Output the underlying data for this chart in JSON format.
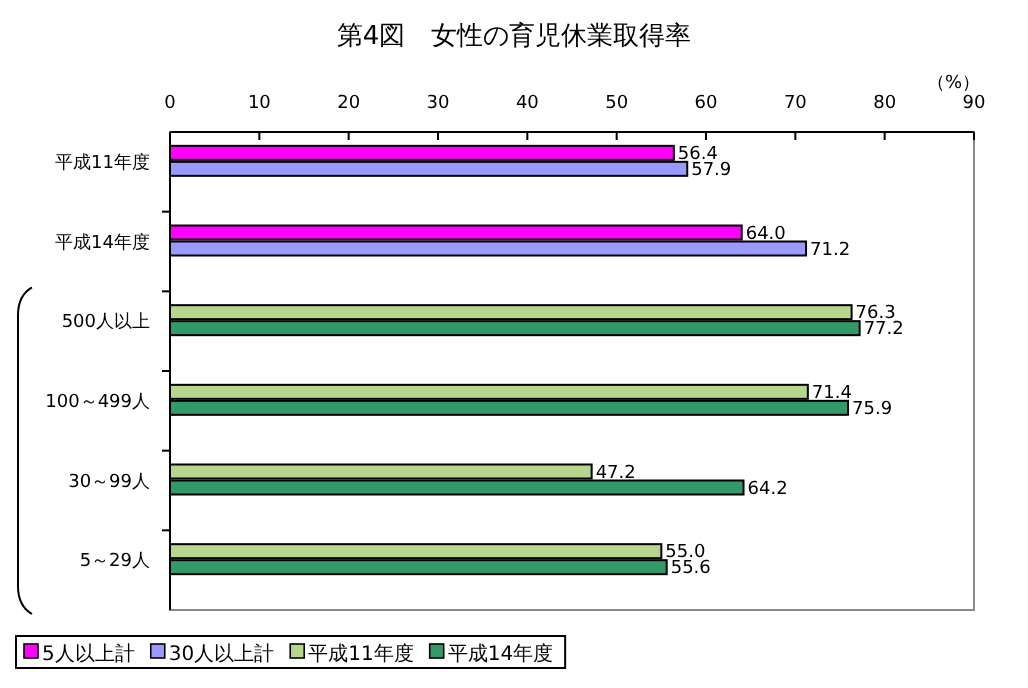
{
  "chart_data": {
    "type": "bar",
    "orientation": "horizontal",
    "title": "第4図　女性の育児休業取得率",
    "annotations": [
      "（%）"
    ],
    "categories": [
      "平成11年度",
      "平成14年度",
      "500人以上",
      "100～499人",
      "30～99人",
      "5～29人"
    ],
    "series": [
      {
        "name": "5人以上計",
        "color": "#ff00ff",
        "values": [
          56.4,
          64.0,
          null,
          null,
          null,
          null
        ],
        "value_labels": [
          "56.4",
          "64.0",
          null,
          null,
          null,
          null
        ]
      },
      {
        "name": "30人以上計",
        "color": "#9999ff",
        "values": [
          57.9,
          71.2,
          null,
          null,
          null,
          null
        ],
        "value_labels": [
          "57.9",
          "71.2",
          null,
          null,
          null,
          null
        ]
      },
      {
        "name": "平成11年度",
        "color": "#b5d68c",
        "values": [
          null,
          null,
          76.3,
          71.4,
          47.2,
          55.0
        ],
        "value_labels": [
          null,
          null,
          "76.3",
          "71.4",
          "47.2",
          "55.0"
        ]
      },
      {
        "name": "平成14年度",
        "color": "#339966",
        "values": [
          null,
          null,
          77.2,
          75.9,
          64.2,
          55.6
        ],
        "value_labels": [
          null,
          null,
          "77.2",
          "75.9",
          "64.2",
          "55.6"
        ]
      }
    ],
    "xlim": [
      0,
      90
    ],
    "xticks": [
      0,
      10,
      20,
      30,
      40,
      50,
      60,
      70,
      80,
      90
    ],
    "legend": "bottom",
    "grid": false
  }
}
